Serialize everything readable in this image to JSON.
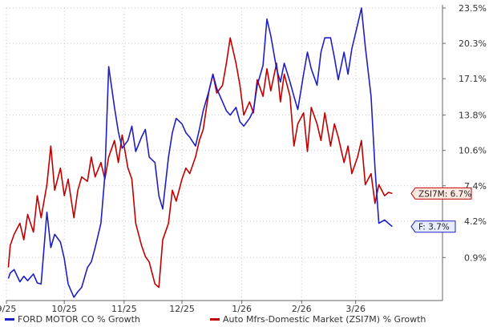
{
  "chart_data": {
    "type": "line",
    "title": "",
    "xlabel": "",
    "ylabel": "",
    "x_ticks": [
      "9/25",
      "10/25",
      "11/25",
      "12/25",
      "1/26",
      "2/26",
      "3/26"
    ],
    "y_ticks": [
      "0.9%",
      "4.2%",
      "7.4%",
      "10.6%",
      "13.8%",
      "17.1%",
      "20.3%",
      "23.5%"
    ],
    "ylim": [
      -3.0,
      23.5
    ],
    "grid": true,
    "grid_style": "dotted",
    "axis_position": "right",
    "legend_position": "bottom",
    "x_start": "2025-09-01",
    "x_end": "2026-04-15",
    "series": [
      {
        "name": "FORD MOTOR CO % Growth",
        "color": "#1f1fbf",
        "end_label": "F: 3.7%",
        "points": [
          [
            "2025-09-02",
            -1.0
          ],
          [
            "2025-09-03",
            -0.5
          ],
          [
            "2025-09-05",
            -0.2
          ],
          [
            "2025-09-08",
            -1.3
          ],
          [
            "2025-09-10",
            -0.8
          ],
          [
            "2025-09-12",
            -1.2
          ],
          [
            "2025-09-15",
            -0.6
          ],
          [
            "2025-09-17",
            -1.4
          ],
          [
            "2025-09-19",
            -1.5
          ],
          [
            "2025-09-22",
            5.0
          ],
          [
            "2025-09-24",
            1.8
          ],
          [
            "2025-09-26",
            3.0
          ],
          [
            "2025-09-29",
            2.3
          ],
          [
            "2025-10-01",
            0.8
          ],
          [
            "2025-10-03",
            -1.5
          ],
          [
            "2025-10-06",
            -2.7
          ],
          [
            "2025-10-08",
            -2.2
          ],
          [
            "2025-10-10",
            -1.8
          ],
          [
            "2025-10-13",
            0.0
          ],
          [
            "2025-10-15",
            0.5
          ],
          [
            "2025-10-17",
            1.8
          ],
          [
            "2025-10-20",
            4.0
          ],
          [
            "2025-10-22",
            8.3
          ],
          [
            "2025-10-24",
            18.2
          ],
          [
            "2025-10-27",
            14.5
          ],
          [
            "2025-10-29",
            12.3
          ],
          [
            "2025-10-31",
            10.8
          ],
          [
            "2025-11-03",
            11.5
          ],
          [
            "2025-11-05",
            12.8
          ],
          [
            "2025-11-07",
            10.5
          ],
          [
            "2025-11-10",
            11.8
          ],
          [
            "2025-11-12",
            12.5
          ],
          [
            "2025-11-14",
            10.0
          ],
          [
            "2025-11-17",
            9.5
          ],
          [
            "2025-11-19",
            6.5
          ],
          [
            "2025-11-21",
            5.3
          ],
          [
            "2025-11-24",
            10.0
          ],
          [
            "2025-11-26",
            12.2
          ],
          [
            "2025-11-28",
            13.5
          ],
          [
            "2025-12-01",
            13.0
          ],
          [
            "2025-12-03",
            12.2
          ],
          [
            "2025-12-05",
            11.8
          ],
          [
            "2025-12-08",
            11.0
          ],
          [
            "2025-12-10",
            12.5
          ],
          [
            "2025-12-12",
            14.2
          ],
          [
            "2025-12-15",
            16.0
          ],
          [
            "2025-12-17",
            17.5
          ],
          [
            "2025-12-19",
            16.2
          ],
          [
            "2025-12-22",
            15.0
          ],
          [
            "2025-12-24",
            14.2
          ],
          [
            "2025-12-26",
            13.8
          ],
          [
            "2025-12-29",
            14.5
          ],
          [
            "2025-12-31",
            13.2
          ],
          [
            "2026-01-02",
            12.8
          ],
          [
            "2026-01-05",
            13.5
          ],
          [
            "2026-01-07",
            14.2
          ],
          [
            "2026-01-09",
            16.5
          ],
          [
            "2026-01-12",
            18.3
          ],
          [
            "2026-01-14",
            22.5
          ],
          [
            "2026-01-16",
            21.0
          ],
          [
            "2026-01-19",
            18.0
          ],
          [
            "2026-01-21",
            16.8
          ],
          [
            "2026-01-23",
            18.5
          ],
          [
            "2026-01-26",
            16.8
          ],
          [
            "2026-01-28",
            15.5
          ],
          [
            "2026-01-30",
            14.3
          ],
          [
            "2026-02-02",
            17.5
          ],
          [
            "2026-02-04",
            19.5
          ],
          [
            "2026-02-06",
            18.0
          ],
          [
            "2026-02-09",
            16.5
          ],
          [
            "2026-02-11",
            19.5
          ],
          [
            "2026-02-13",
            20.8
          ],
          [
            "2026-02-16",
            20.8
          ],
          [
            "2026-02-18",
            19.0
          ],
          [
            "2026-02-20",
            17.0
          ],
          [
            "2026-02-23",
            19.5
          ],
          [
            "2026-02-25",
            17.5
          ],
          [
            "2026-02-27",
            19.8
          ],
          [
            "2026-03-02",
            22.0
          ],
          [
            "2026-03-04",
            23.5
          ],
          [
            "2026-03-06",
            20.0
          ],
          [
            "2026-03-09",
            15.5
          ],
          [
            "2026-03-11",
            9.0
          ],
          [
            "2026-03-13",
            4.0
          ],
          [
            "2026-03-16",
            4.3
          ],
          [
            "2026-03-18",
            4.0
          ],
          [
            "2026-03-20",
            3.7
          ]
        ]
      },
      {
        "name": "Auto Mfrs-Domestic Market (ZSI7M) % Growth",
        "color": "#c00000",
        "end_label": "ZSI7M: 6.7%",
        "points": [
          [
            "2025-09-02",
            0.0
          ],
          [
            "2025-09-03",
            2.0
          ],
          [
            "2025-09-05",
            3.0
          ],
          [
            "2025-09-08",
            4.0
          ],
          [
            "2025-09-10",
            2.5
          ],
          [
            "2025-09-12",
            4.8
          ],
          [
            "2025-09-15",
            3.2
          ],
          [
            "2025-09-17",
            6.5
          ],
          [
            "2025-09-19",
            4.5
          ],
          [
            "2025-09-22",
            7.5
          ],
          [
            "2025-09-24",
            11.0
          ],
          [
            "2025-09-26",
            7.0
          ],
          [
            "2025-09-29",
            9.0
          ],
          [
            "2025-10-01",
            6.5
          ],
          [
            "2025-10-03",
            8.0
          ],
          [
            "2025-10-06",
            4.5
          ],
          [
            "2025-10-08",
            7.0
          ],
          [
            "2025-10-10",
            8.2
          ],
          [
            "2025-10-13",
            7.8
          ],
          [
            "2025-10-15",
            10.0
          ],
          [
            "2025-10-17",
            8.2
          ],
          [
            "2025-10-20",
            9.5
          ],
          [
            "2025-10-22",
            8.0
          ],
          [
            "2025-10-24",
            10.0
          ],
          [
            "2025-10-27",
            11.5
          ],
          [
            "2025-10-29",
            9.5
          ],
          [
            "2025-10-31",
            12.0
          ],
          [
            "2025-11-03",
            9.0
          ],
          [
            "2025-11-05",
            8.0
          ],
          [
            "2025-11-07",
            4.0
          ],
          [
            "2025-11-10",
            2.0
          ],
          [
            "2025-11-12",
            1.0
          ],
          [
            "2025-11-14",
            0.5
          ],
          [
            "2025-11-17",
            -1.5
          ],
          [
            "2025-11-19",
            -1.8
          ],
          [
            "2025-11-21",
            2.5
          ],
          [
            "2025-11-24",
            4.0
          ],
          [
            "2025-11-26",
            7.0
          ],
          [
            "2025-11-28",
            6.0
          ],
          [
            "2025-12-01",
            8.0
          ],
          [
            "2025-12-03",
            9.0
          ],
          [
            "2025-12-05",
            8.5
          ],
          [
            "2025-12-08",
            10.0
          ],
          [
            "2025-12-10",
            11.5
          ],
          [
            "2025-12-12",
            12.5
          ],
          [
            "2025-12-15",
            16.0
          ],
          [
            "2025-12-17",
            17.5
          ],
          [
            "2025-12-19",
            15.8
          ],
          [
            "2025-12-22",
            16.5
          ],
          [
            "2025-12-24",
            18.5
          ],
          [
            "2025-12-26",
            20.8
          ],
          [
            "2025-12-29",
            18.5
          ],
          [
            "2025-12-31",
            16.5
          ],
          [
            "2026-01-02",
            13.8
          ],
          [
            "2026-01-05",
            15.0
          ],
          [
            "2026-01-07",
            14.0
          ],
          [
            "2026-01-09",
            17.0
          ],
          [
            "2026-01-12",
            15.5
          ],
          [
            "2026-01-14",
            18.0
          ],
          [
            "2026-01-16",
            16.0
          ],
          [
            "2026-01-19",
            18.5
          ],
          [
            "2026-01-21",
            15.0
          ],
          [
            "2026-01-23",
            17.5
          ],
          [
            "2026-01-26",
            15.5
          ],
          [
            "2026-01-28",
            11.0
          ],
          [
            "2026-01-30",
            13.0
          ],
          [
            "2026-02-02",
            14.0
          ],
          [
            "2026-02-04",
            10.5
          ],
          [
            "2026-02-06",
            14.5
          ],
          [
            "2026-02-09",
            13.0
          ],
          [
            "2026-02-11",
            11.5
          ],
          [
            "2026-02-13",
            14.0
          ],
          [
            "2026-02-16",
            11.0
          ],
          [
            "2026-02-18",
            13.0
          ],
          [
            "2026-02-20",
            11.8
          ],
          [
            "2026-02-23",
            9.5
          ],
          [
            "2026-02-25",
            11.0
          ],
          [
            "2026-02-27",
            8.5
          ],
          [
            "2026-03-02",
            10.0
          ],
          [
            "2026-03-04",
            11.5
          ],
          [
            "2026-03-06",
            7.5
          ],
          [
            "2026-03-09",
            8.5
          ],
          [
            "2026-03-11",
            5.8
          ],
          [
            "2026-03-13",
            7.5
          ],
          [
            "2026-03-16",
            6.5
          ],
          [
            "2026-03-18",
            6.8
          ],
          [
            "2026-03-20",
            6.7
          ]
        ]
      }
    ]
  },
  "legend": {
    "items": [
      {
        "label": "FORD MOTOR CO % Growth",
        "color": "#1f1fbf"
      },
      {
        "label": "Auto Mfrs-Domestic Market (ZSI7M) % Growth",
        "color": "#c00000"
      }
    ]
  }
}
